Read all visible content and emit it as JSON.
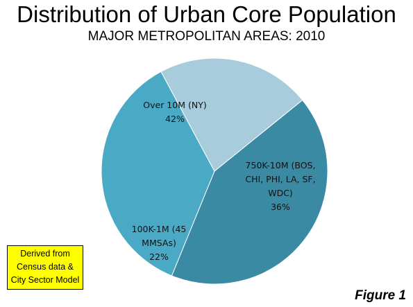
{
  "chart_data": {
    "type": "pie",
    "title": "Distribution of Urban Core Population",
    "subtitle": "MAJOR METROPOLITAN AREAS: 2010",
    "slices": [
      {
        "label_lines": [
          "Over 10M (NY)",
          "42%"
        ],
        "value": 42,
        "color": "#3a8aa3"
      },
      {
        "label_lines": [
          "750K-10M (BOS,",
          "CHI, PHI, LA, SF,",
          "WDC)",
          "36%"
        ],
        "value": 36,
        "color": "#4aaac6"
      },
      {
        "label_lines": [
          "100K-1M (45",
          "MMSAs)",
          "22%"
        ],
        "value": 22,
        "color": "#a8ccdc"
      }
    ]
  },
  "note": {
    "lines": [
      "Derived from",
      "Census data &",
      "City Sector Model"
    ]
  },
  "figure_label": "Figure 1"
}
